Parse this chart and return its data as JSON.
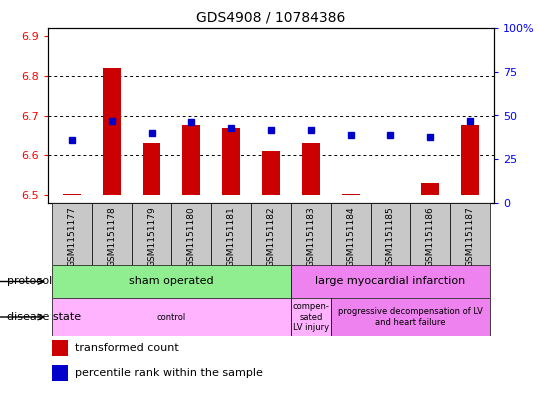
{
  "title": "GDS4908 / 10784386",
  "samples": [
    "GSM1151177",
    "GSM1151178",
    "GSM1151179",
    "GSM1151180",
    "GSM1151181",
    "GSM1151182",
    "GSM1151183",
    "GSM1151184",
    "GSM1151185",
    "GSM1151186",
    "GSM1151187"
  ],
  "bar_values": [
    6.502,
    6.82,
    6.63,
    6.675,
    6.668,
    6.61,
    6.632,
    6.502,
    6.501,
    6.53,
    6.675
  ],
  "bar_base": 6.5,
  "percentile_values": [
    36,
    47,
    40,
    46,
    43,
    42,
    42,
    39,
    39,
    38,
    47
  ],
  "ylim_left": [
    6.48,
    6.92
  ],
  "ylim_right": [
    0,
    100
  ],
  "yticks_left": [
    6.5,
    6.6,
    6.7,
    6.8,
    6.9
  ],
  "yticks_right": [
    0,
    25,
    50,
    75,
    100
  ],
  "ytick_labels_right": [
    "0",
    "25",
    "50",
    "75",
    "100%"
  ],
  "bar_color": "#cc0000",
  "percentile_color": "#0000cc",
  "protocol_groups": [
    {
      "label": "sham operated",
      "start": 0,
      "end": 5,
      "color": "#90ee90"
    },
    {
      "label": "large myocardial infarction",
      "start": 6,
      "end": 10,
      "color": "#ee82ee"
    }
  ],
  "disease_groups": [
    {
      "label": "control",
      "start": 0,
      "end": 5,
      "color": "#ffb3ff"
    },
    {
      "label": "compen-\nsated\nLV injury",
      "start": 6,
      "end": 6,
      "color": "#ffb3ff"
    },
    {
      "label": "progressive decompensation of LV\nand heart failure",
      "start": 7,
      "end": 10,
      "color": "#ee82ee"
    }
  ],
  "legend_items": [
    {
      "color": "#cc0000",
      "label": "transformed count"
    },
    {
      "color": "#0000cc",
      "label": "percentile rank within the sample"
    }
  ],
  "label_protocol": "protocol",
  "label_disease": "disease state"
}
